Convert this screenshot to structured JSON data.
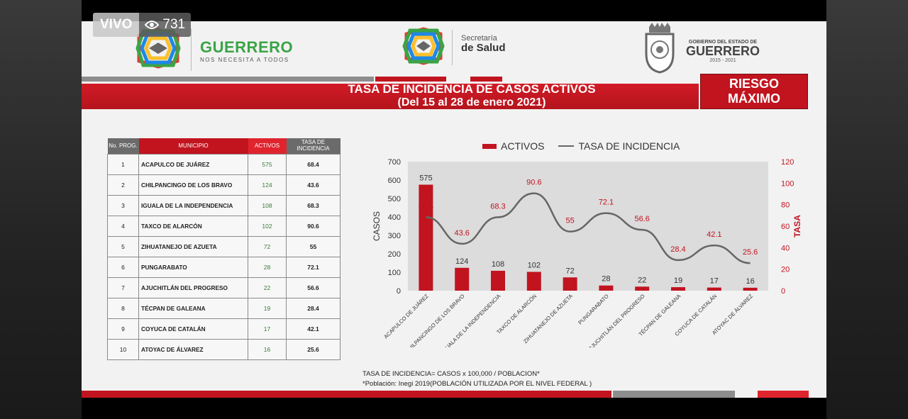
{
  "live": {
    "label": "VIVO",
    "views": "731"
  },
  "header": {
    "brand_left": "GUERRERO",
    "brand_left_tag": "NOS NECESITA A TODOS",
    "secretaria_line1": "Secretaría",
    "secretaria_line2": "de Salud",
    "gob_line1": "GOBIERNO DEL ESTADO DE",
    "gob_line2": "GUERRERO",
    "gob_years": "2015 - 2021"
  },
  "title": {
    "line1": "TASA DE INCIDENCIA DE CASOS ACTIVOS",
    "line2": "(Del 15 al 28 de enero 2021)"
  },
  "risk": {
    "line1": "RIESGO",
    "line2": "MÁXIMO"
  },
  "colors": {
    "red": "#c1141f",
    "green": "#3aa445",
    "line": "#666666",
    "header_gray": "#6b6b6b"
  },
  "table": {
    "headers": {
      "no": "No. PROG.",
      "municipio": "MUNICIPIO",
      "activos": "ACTIVOS",
      "tasa": "TASA DE INCIDENCIA"
    },
    "rows": [
      {
        "no": "1",
        "municipio": "ACAPULCO DE JUÁREZ",
        "activos": "575",
        "tasa": "68.4"
      },
      {
        "no": "2",
        "municipio": "CHILPANCINGO DE LOS BRAVO",
        "activos": "124",
        "tasa": "43.6"
      },
      {
        "no": "3",
        "municipio": "IGUALA DE LA INDEPENDENCIA",
        "activos": "108",
        "tasa": "68.3"
      },
      {
        "no": "4",
        "municipio": "TAXCO DE ALARCÓN",
        "activos": "102",
        "tasa": "90.6"
      },
      {
        "no": "5",
        "municipio": "ZIHUATANEJO DE AZUETA",
        "activos": "72",
        "tasa": "55"
      },
      {
        "no": "6",
        "municipio": "PUNGARABATO",
        "activos": "28",
        "tasa": "72.1"
      },
      {
        "no": "7",
        "municipio": "AJUCHITLÁN DEL PROGRESO",
        "activos": "22",
        "tasa": "56.6"
      },
      {
        "no": "8",
        "municipio": "TÉCPAN DE GALEANA",
        "activos": "19",
        "tasa": "28.4"
      },
      {
        "no": "9",
        "municipio": "COYUCA DE CATALÁN",
        "activos": "17",
        "tasa": "42.1"
      },
      {
        "no": "10",
        "municipio": "ATOYAC DE ÁLVAREZ",
        "activos": "16",
        "tasa": "25.6"
      }
    ]
  },
  "chart_data": {
    "type": "bar",
    "legend": [
      "ACTIVOS",
      "TASA DE INCIDENCIA"
    ],
    "legend_position": "top",
    "categories": [
      "ACAPULCO DE JUÁREZ",
      "CHILPANCINGO DE LOS BRAVO",
      "IGUALA DE LA INDEPENDENCIA",
      "TAXCO DE ALARCÓN",
      "ZIHUATANEJO DE AZUETA",
      "PUNGARABATO",
      "AJUCHITLÁN DEL PROGRESO",
      "TÉCPAN DE GALEANA",
      "COYUCA DE CATALÁN",
      "ATOYAC DE ÁLVAREZ"
    ],
    "series": [
      {
        "name": "ACTIVOS",
        "type": "bar",
        "axis": "left",
        "values": [
          575,
          124,
          108,
          102,
          72,
          28,
          22,
          19,
          17,
          16
        ]
      },
      {
        "name": "TASA DE INCIDENCIA",
        "type": "line",
        "axis": "right",
        "values": [
          68.4,
          43.6,
          68.3,
          90.6,
          55,
          72.1,
          56.6,
          28.4,
          42.1,
          25.6
        ]
      }
    ],
    "ylabel": "CASOS",
    "y2label": "TASA",
    "ylim": [
      0,
      700
    ],
    "y2lim": [
      0,
      120
    ],
    "yticks": [
      "0",
      "100",
      "200",
      "300",
      "400",
      "500",
      "600",
      "700"
    ],
    "y2ticks": [
      "0",
      "20",
      "40",
      "60",
      "80",
      "100",
      "120"
    ],
    "grid": false
  },
  "footnote": {
    "line1": "TASA DE INCIDENCIA= CASOS x 100,000 / POBLACION*",
    "line2": "*Población: Inegi 2019(POBLACIÓN UTILIZADA POR EL NIVEL FEDERAL )"
  }
}
